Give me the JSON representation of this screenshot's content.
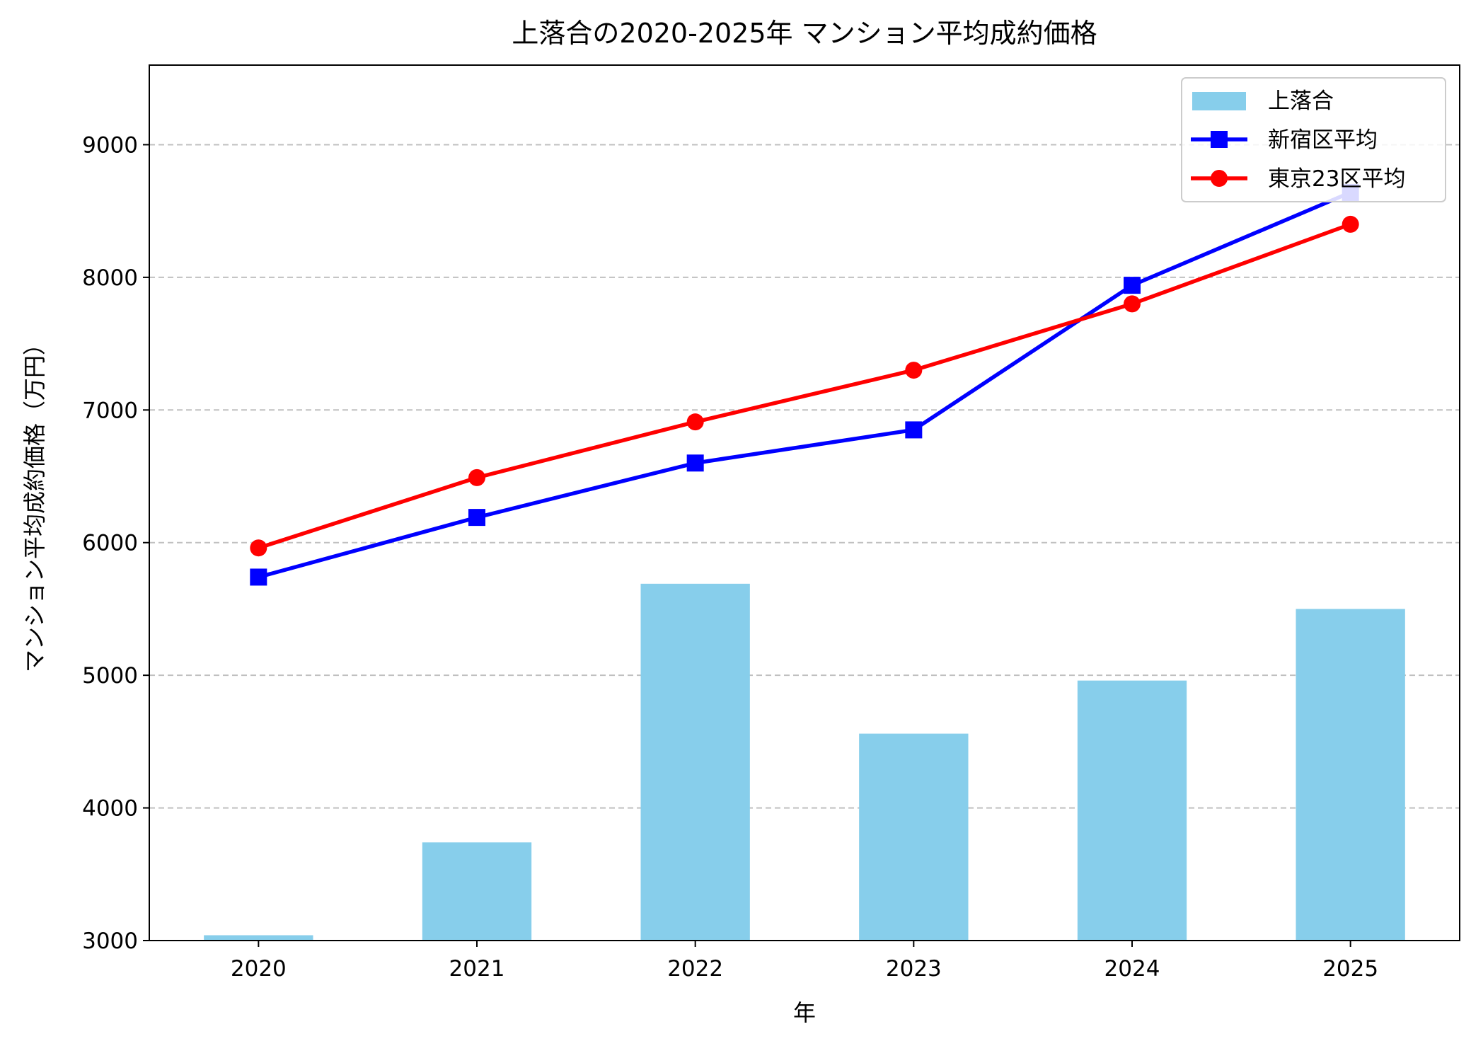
{
  "chart_data": {
    "type": "bar",
    "title": "上落合の2020-2025年 マンション平均成約価格",
    "xlabel": "年",
    "ylabel": "マンション平均成約価格（万円）",
    "categories": [
      "2020",
      "2021",
      "2022",
      "2023",
      "2024",
      "2025"
    ],
    "ylim": [
      3000,
      9600
    ],
    "yticks": [
      3000,
      4000,
      5000,
      6000,
      7000,
      8000,
      9000
    ],
    "grid": "y, dashed",
    "legend_position": "top-right",
    "series": [
      {
        "name": "上落合",
        "kind": "bar",
        "color": "#87CEEB",
        "values": [
          3040,
          3740,
          5690,
          4560,
          4960,
          5500
        ]
      },
      {
        "name": "新宿区平均",
        "kind": "line",
        "marker": "square",
        "color": "#0000FF",
        "values": [
          5740,
          6190,
          6600,
          6850,
          7940,
          8640
        ]
      },
      {
        "name": "東京23区平均",
        "kind": "line",
        "marker": "circle",
        "color": "#FF0000",
        "values": [
          5960,
          6490,
          6910,
          7300,
          7800,
          8400
        ]
      }
    ]
  }
}
